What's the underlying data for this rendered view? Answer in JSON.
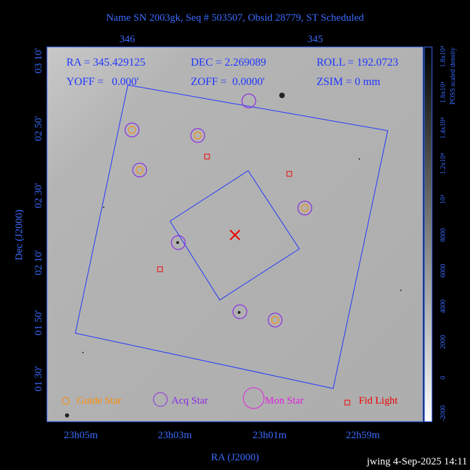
{
  "header": {
    "title": "Name SN 2003gk, Seq # 503507, Obsid 28779, ST Scheduled"
  },
  "axes": {
    "x_label": "RA (J2000)",
    "y_label": "Dec (J2000)",
    "top_ticks": [
      "346",
      "345"
    ],
    "bottom_ticks": [
      "23h05m",
      "23h03m",
      "23h01m",
      "22h59m"
    ],
    "left_ticks": [
      "03 10'",
      "02 50'",
      "02 30'",
      "02 10'",
      "01 50'",
      "01 30'"
    ]
  },
  "info": {
    "ra": "RA = 345.429125",
    "dec": "DEC = 2.269089",
    "roll": "ROLL = 192.0723",
    "yoff": "YOFF =   0.000'",
    "zoff": "ZOFF =  0.0000'",
    "zsim": "ZSIM = 0 mm"
  },
  "legend": [
    "Guide Star",
    "Acq Star",
    "Mon Star",
    "Fid Light"
  ],
  "colorbar": {
    "title": "POSS scaled density",
    "ticks": [
      "-2000",
      "0",
      "2000",
      "4000",
      "6000",
      "8000",
      "10⁴",
      "1.2x10⁴",
      "1.4x10⁴",
      "1.6x10⁴",
      "1.8x10⁴"
    ]
  },
  "footer": "jwing  4-Sep-2025 14:11"
}
